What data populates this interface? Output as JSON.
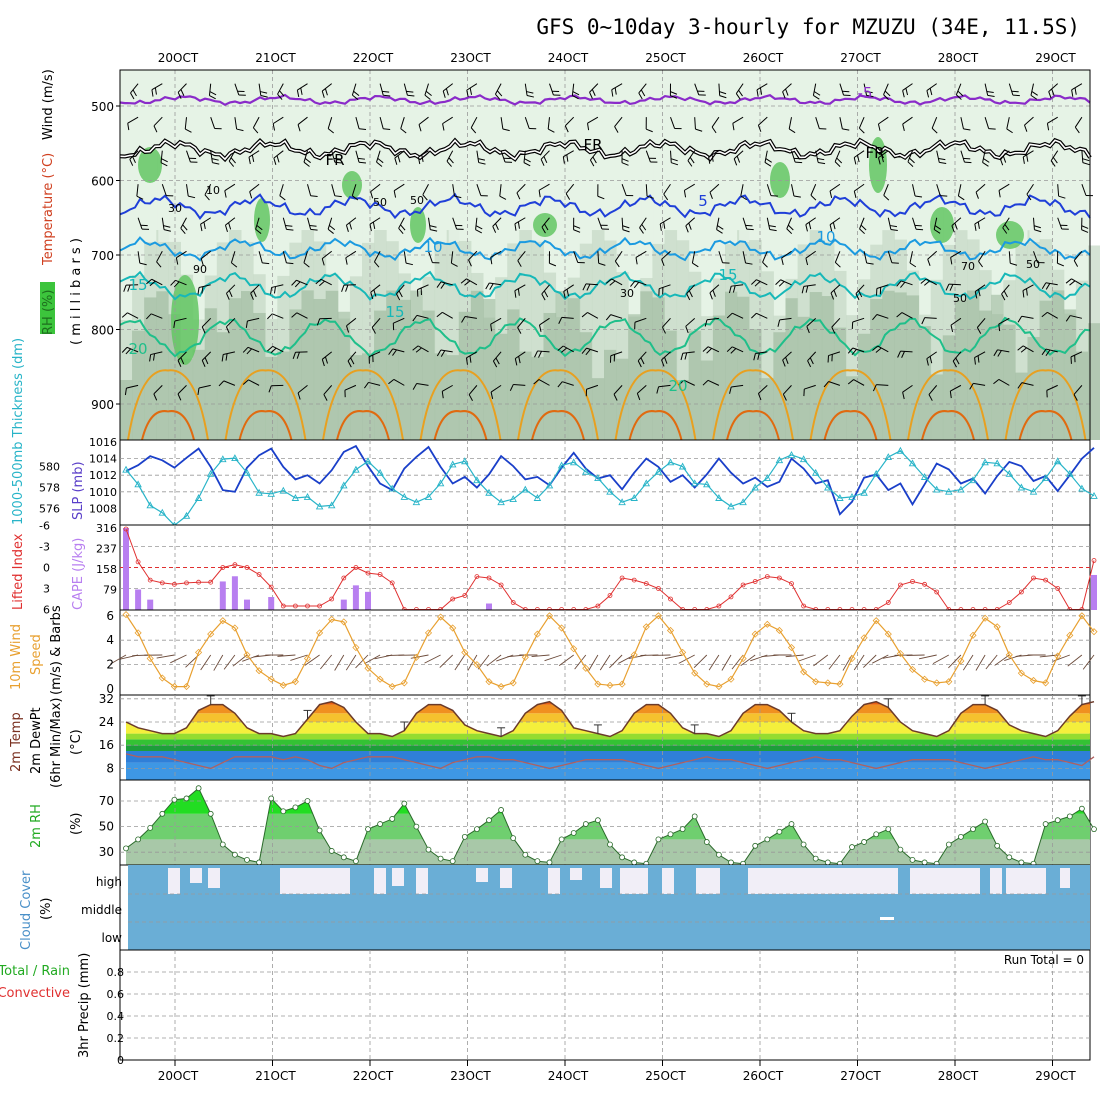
{
  "title": "GFS 0~10day 3-hourly for MZUZU (34E, 11.5S)",
  "x_axis": {
    "day_labels": [
      "20OCT",
      "21OCT",
      "22OCT",
      "23OCT",
      "24OCT",
      "25OCT",
      "26OCT",
      "27OCT",
      "28OCT",
      "29OCT"
    ]
  },
  "colors": {
    "rh_light": "#e6f3e6",
    "rh_mid": "#c7d9c7",
    "rh_dark": "#96b296",
    "rh_green": "#63c663",
    "temp_minus5": "#8a2bc9",
    "temp_0": "#000000",
    "temp_5": "#1f3fd8",
    "temp_10": "#1b9ae0",
    "temp_15": "#17b8b8",
    "temp_20": "#1fbf8a",
    "temp_25": "#e8a020",
    "temp_30": "#e06a10",
    "slp": "#1a3fc9",
    "thickness": "#28b4c8",
    "cape": "#b87ff0",
    "lifted_index": "#e03030",
    "wind": "#e8a030",
    "barb": "#6b4a3a",
    "rh2m": "#2ecc2e",
    "cloud": "#6aaed6",
    "cloud_clear": "#f1eef7"
  },
  "panels": {
    "upper_air": {
      "ylabel_rh": "RH (%)",
      "ylabel_temp": "Temperature (°C)",
      "ylabel_wind": "Wind (m/s)",
      "ylabel_p": "( m i l l i b a r s )",
      "yticks": [
        "500",
        "600",
        "700",
        "800",
        "900"
      ],
      "contour_labels": [
        "-5",
        "FR",
        "FR",
        "FR",
        "5",
        "10",
        "10",
        "15",
        "15",
        "15",
        "20",
        "20",
        "10",
        "30",
        "50",
        "50",
        "70",
        "50",
        "30",
        "50",
        "90"
      ]
    },
    "slp": {
      "ylabel_thick": "1000-500mb Thickness (dm)",
      "ylabel_slp": "SLP (mb)",
      "yticks_left": [
        "580",
        "578",
        "576"
      ],
      "yticks_right": [
        "1016",
        "1014",
        "1012",
        "1010",
        "1008"
      ]
    },
    "cape": {
      "ylabel_li": "Lifted Index",
      "ylabel_cape": "CAPE (J/kg)",
      "yticks_left": [
        "-6",
        "-3",
        "0",
        "3",
        "6"
      ],
      "yticks_right": [
        "316",
        "237",
        "158",
        "79"
      ]
    },
    "wind10m": {
      "ylabel_1": "10m Wind",
      "ylabel_2": "Speed",
      "ylabel_3": "(m/s) & Barbs",
      "yticks": [
        "6",
        "4",
        "2",
        "0"
      ]
    },
    "temp2m": {
      "ylabel_1": "2m Temp",
      "ylabel_2": "2m DewPt",
      "ylabel_3": "(6hr Min/Max)",
      "ylabel_4": "(°C)",
      "yticks": [
        "32",
        "24",
        "16",
        "8"
      ]
    },
    "rh2m": {
      "ylabel_1": "2m RH",
      "ylabel_2": "(%)",
      "yticks": [
        "70",
        "50",
        "30"
      ]
    },
    "cloud": {
      "ylabel_1": "Cloud Cover",
      "ylabel_2": "(%)",
      "levels": [
        "high",
        "middle",
        "low"
      ]
    },
    "precip": {
      "ylabel_1": "Total / Rain",
      "ylabel_2": "Convective",
      "ylabel_3": "3hr Precip (mm)",
      "yticks": [
        "0.8",
        "0.6",
        "0.4",
        "0.2",
        "0"
      ],
      "run_total": "Run Total = 0"
    }
  },
  "chart_data": {
    "type": "line",
    "time_step_hours": 3,
    "steps": 81,
    "series": [
      {
        "name": "SLP (mb)",
        "values": [
          1012.5,
          1013.2,
          1014.3,
          1013.8,
          1012.9,
          1014.1,
          1015.2,
          1013.0,
          1010.2,
          1010.0,
          1012.9,
          1014.4,
          1015.2,
          1013.0,
          1011.5,
          1012.0,
          1011.0,
          1012.6,
          1014.8,
          1015.5,
          1013.1,
          1011.0,
          1010.2,
          1012.8,
          1014.2,
          1015.4,
          1013.0,
          1011.0,
          1011.8,
          1010.5,
          1012.1,
          1014.3,
          1013.1,
          1011.5,
          1011.8,
          1010.8,
          1012.9,
          1014.7,
          1012.8,
          1011.6,
          1012.0,
          1010.3,
          1012.3,
          1014.0,
          1013.0,
          1011.2,
          1012.0,
          1010.5,
          1012.1,
          1014.0,
          1012.3,
          1011.0,
          1011.7,
          1010.6,
          1011.2,
          1014.0,
          1012.8,
          1011.0,
          1011.4,
          1007.3,
          1008.8,
          1011.7,
          1012.1,
          1010.2,
          1011.0,
          1008.5,
          1010.9,
          1013.4,
          1012.7,
          1011.0,
          1011.6,
          1009.8,
          1011.9,
          1013.6,
          1013.1,
          1011.3,
          1011.9,
          1010.1,
          1012.0,
          1014.0,
          1015.3
        ]
      },
      {
        "name": "1000-500mb Thickness (dm)",
        "values": [
          579.7,
          578.3,
          576.3,
          575.6,
          574.4,
          575.3,
          577.0,
          579.3,
          580.7,
          580.8,
          579.4,
          577.5,
          577.4,
          577.7,
          577.0,
          577.1,
          576.2,
          576.3,
          578.2,
          579.7,
          580.5,
          579.4,
          577.9,
          577.1,
          576.6,
          577.1,
          578.4,
          580.2,
          580.5,
          578.7,
          577.5,
          576.6,
          576.9,
          577.8,
          577.0,
          578.2,
          580.1,
          580.4,
          579.5,
          578.9,
          577.6,
          576.6,
          577.0,
          578.4,
          579.5,
          580.4,
          580.0,
          578.4,
          578.3,
          577.0,
          576.2,
          576.6,
          578.0,
          578.9,
          580.6,
          581.1,
          580.7,
          579.4,
          578.0,
          577.0,
          577.1,
          577.5,
          579.3,
          580.9,
          581.5,
          580.3,
          579.0,
          577.8,
          577.6,
          577.8,
          578.7,
          580.4,
          580.3,
          579.3,
          578.0,
          577.6,
          578.9,
          580.5,
          579.3,
          577.9,
          577.2
        ]
      },
      {
        "name": "CAPE (J/kg)",
        "values": [
          316,
          79,
          40,
          0,
          0,
          0,
          0,
          0,
          110,
          130,
          40,
          0,
          50,
          0,
          0,
          0,
          0,
          0,
          40,
          95,
          70,
          0,
          0,
          0,
          0,
          0,
          0,
          0,
          0,
          0,
          25,
          0,
          0,
          0,
          0,
          0,
          0,
          0,
          0,
          0,
          0,
          0,
          0,
          0,
          0,
          0,
          0,
          0,
          0,
          0,
          0,
          0,
          0,
          0,
          0,
          0,
          0,
          0,
          0,
          0,
          0,
          0,
          0,
          0,
          0,
          0,
          0,
          0,
          0,
          0,
          0,
          0,
          0,
          0,
          0,
          0,
          0,
          0,
          0,
          0,
          135
        ]
      },
      {
        "name": "Lifted Index",
        "values": [
          -5.5,
          -0.8,
          1.8,
          2.2,
          2.4,
          2.2,
          2.1,
          2.1,
          0,
          -0.4,
          0,
          1,
          2.8,
          5.5,
          5.5,
          5.5,
          5.5,
          4.5,
          1.5,
          0,
          0.8,
          1,
          2.2,
          6,
          6,
          6,
          6,
          4.5,
          4,
          1.3,
          1.5,
          2.5,
          5,
          6,
          6,
          6,
          6,
          6,
          6,
          5.5,
          4,
          1.5,
          1.8,
          2.3,
          3,
          4.5,
          6,
          6,
          6,
          5.5,
          4.2,
          2.5,
          2,
          1.3,
          1.5,
          2.3,
          5.5,
          6,
          6,
          6,
          6,
          6,
          6,
          5,
          2.5,
          2,
          2.4,
          3.5,
          6,
          6,
          6,
          6,
          6,
          5,
          3.5,
          1.5,
          1.8,
          3,
          6,
          6,
          -1
        ]
      },
      {
        "name": "10m Wind Speed (m/s)",
        "values": [
          6.1,
          4.6,
          2.5,
          0.9,
          0.2,
          0.2,
          3,
          4.5,
          5.6,
          5,
          2.8,
          1.5,
          0.8,
          0.3,
          0.6,
          2.5,
          4.6,
          5.7,
          5.5,
          3.4,
          1.7,
          0.8,
          0.2,
          0.5,
          2.6,
          4.6,
          5.9,
          5,
          3,
          2,
          0.6,
          0.2,
          0.5,
          2.6,
          4.5,
          6,
          5,
          3.3,
          1.7,
          0.4,
          0.3,
          0.4,
          2.8,
          5.1,
          6,
          4.8,
          3,
          1.3,
          0.4,
          0.2,
          0.8,
          2.5,
          4.5,
          5.3,
          4.8,
          3.4,
          1.4,
          0.6,
          0.5,
          0.4,
          2.5,
          4.2,
          5.6,
          4.5,
          2.9,
          1.6,
          0.8,
          0.5,
          0.6,
          2.3,
          4.4,
          5.8,
          5.1,
          2.8,
          1.3,
          0.7,
          0.5,
          2.7,
          4.4,
          6,
          4.7
        ]
      },
      {
        "name": "2m Temperature (°C)",
        "values": [
          24,
          22,
          21,
          20,
          20,
          22,
          28,
          30,
          30,
          27,
          22,
          20,
          20,
          19,
          20,
          25,
          30,
          31,
          29,
          24,
          20,
          20,
          19,
          21,
          27,
          30,
          30,
          28,
          23,
          21,
          20,
          19,
          21,
          27,
          30,
          31,
          28,
          22,
          21,
          20,
          19,
          21,
          27,
          30,
          30,
          27,
          22,
          20,
          20,
          19,
          21,
          27,
          30,
          30,
          28,
          24,
          21,
          20,
          20,
          21,
          26,
          30,
          31,
          29,
          24,
          21,
          20,
          19,
          21,
          27,
          30,
          30,
          28,
          23,
          21,
          20,
          19,
          21,
          26,
          30,
          31
        ]
      },
      {
        "name": "2m Dew Point (°C)",
        "values": [
          13,
          12,
          12,
          12,
          11,
          10,
          9,
          8,
          10,
          12,
          12,
          12,
          12,
          11,
          12,
          11,
          9,
          8,
          10,
          11,
          12,
          12,
          12,
          11,
          10,
          9,
          8,
          10,
          11,
          12,
          12,
          11,
          11,
          10,
          9,
          8,
          9,
          10,
          11,
          11,
          11,
          11,
          10,
          9,
          8,
          9,
          10,
          11,
          12,
          11,
          11,
          10,
          9,
          8,
          9,
          10,
          11,
          12,
          11,
          11,
          10,
          9,
          8,
          9,
          10,
          11,
          11,
          11,
          11,
          10,
          9,
          8,
          9,
          10,
          11,
          12,
          11,
          11,
          10,
          9,
          12
        ]
      },
      {
        "name": "2m RH (%)",
        "values": [
          33,
          40,
          49,
          60,
          71,
          72,
          80,
          60,
          36,
          28,
          24,
          22,
          72,
          62,
          65,
          70,
          47,
          31,
          26,
          23,
          48,
          52,
          56,
          68,
          50,
          32,
          25,
          23,
          42,
          48,
          55,
          63,
          41,
          28,
          23,
          22,
          40,
          45,
          52,
          55,
          36,
          26,
          22,
          21,
          40,
          44,
          48,
          58,
          38,
          28,
          22,
          21,
          35,
          40,
          46,
          52,
          36,
          25,
          22,
          21,
          34,
          38,
          44,
          48,
          32,
          24,
          22,
          21,
          36,
          42,
          48,
          54,
          35,
          26,
          22,
          21,
          52,
          55,
          58,
          64,
          48
        ]
      },
      {
        "name": "3hr Precip Total (mm)",
        "values": [
          0,
          0,
          0,
          0,
          0,
          0,
          0,
          0,
          0,
          0,
          0,
          0,
          0,
          0,
          0,
          0,
          0,
          0,
          0,
          0,
          0,
          0,
          0,
          0,
          0,
          0,
          0,
          0,
          0,
          0,
          0,
          0,
          0,
          0,
          0,
          0,
          0,
          0,
          0,
          0,
          0,
          0,
          0,
          0,
          0,
          0,
          0,
          0,
          0,
          0,
          0,
          0,
          0,
          0,
          0,
          0,
          0,
          0,
          0,
          0,
          0,
          0,
          0,
          0,
          0,
          0,
          0,
          0,
          0,
          0,
          0,
          0,
          0,
          0,
          0,
          0,
          0,
          0,
          0,
          0,
          0
        ]
      }
    ]
  }
}
